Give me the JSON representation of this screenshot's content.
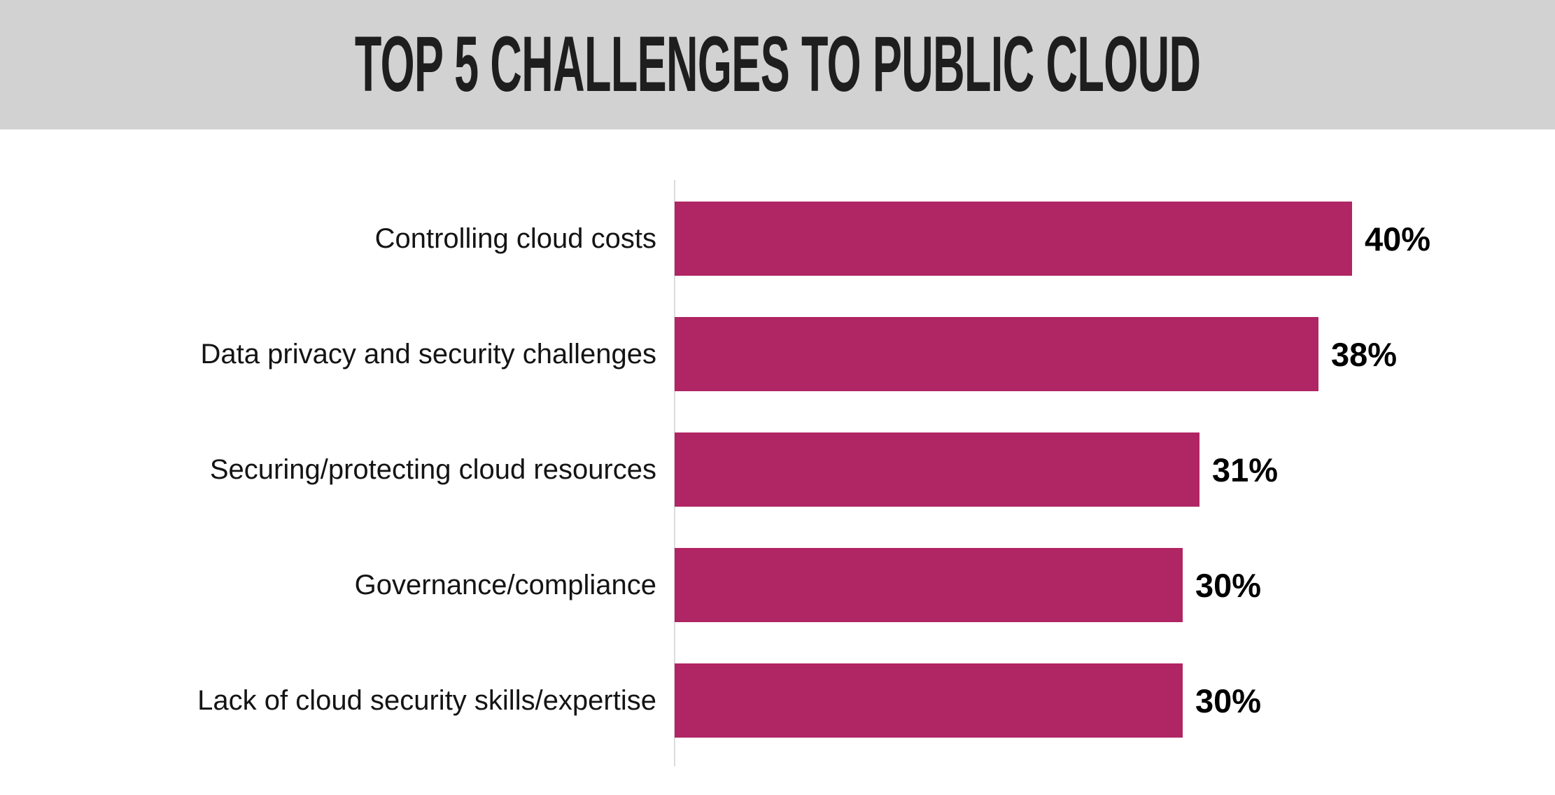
{
  "header": {
    "title": "TOP 5 CHALLENGES TO PUBLIC CLOUD"
  },
  "chart_data": {
    "type": "bar",
    "orientation": "horizontal",
    "title": "TOP 5 CHALLENGES TO PUBLIC CLOUD",
    "categories": [
      "Controlling cloud costs",
      "Data privacy and security challenges",
      "Securing/protecting cloud resources",
      "Governance/compliance",
      "Lack of cloud security skills/expertise"
    ],
    "values": [
      40,
      38,
      31,
      30,
      30
    ],
    "value_labels": [
      "40%",
      "38%",
      "31%",
      "30%",
      "30%"
    ],
    "xlabel": "",
    "ylabel": "",
    "xlim": [
      0,
      45
    ],
    "grid": false,
    "legend": false,
    "bar_color": "#b02563",
    "header_bg": "#d2d2d2",
    "axis_line_color": "#dcdcdc"
  }
}
